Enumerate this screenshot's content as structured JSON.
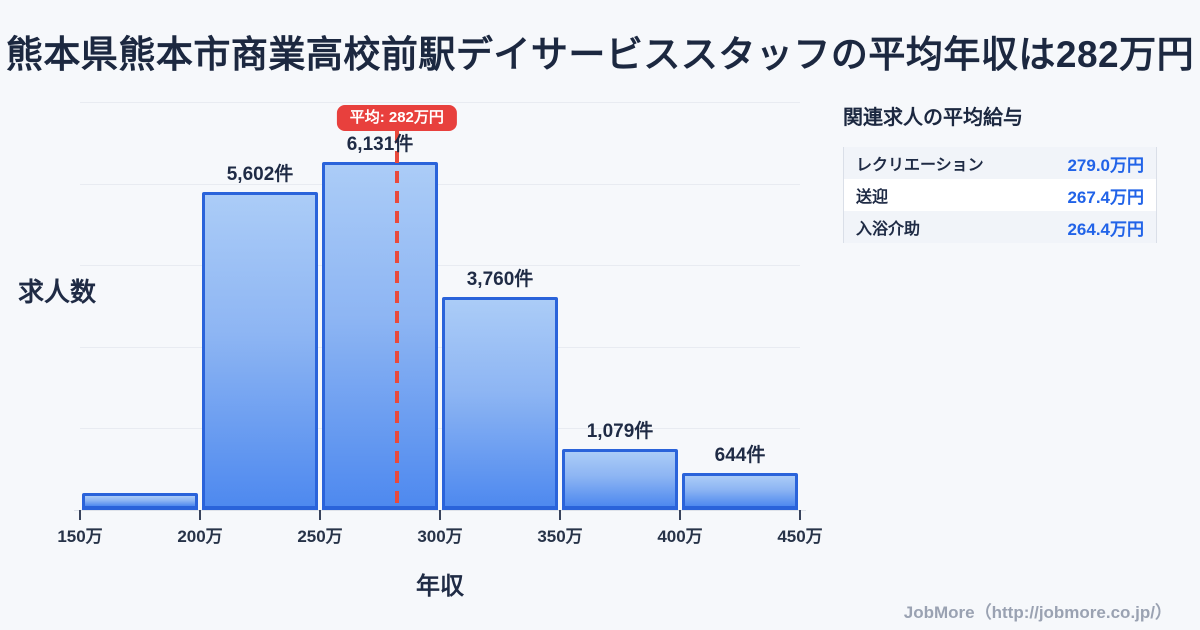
{
  "page": {
    "title": "熊本県熊本市商業高校前駅デイサービススタッフの平均年収は282万円",
    "footer": "JobMore（http://jobmore.co.jp/）"
  },
  "colors": {
    "background": "#f6f8fb",
    "title_text": "#1c2840",
    "bar_border": "#2a63da",
    "bar_fill_top": "#abccf7",
    "bar_fill_bottom": "#4e89ef",
    "grid_line": "#e8ebf1",
    "average_line": "#e84a3c",
    "average_badge_bg": "#e8403d",
    "average_badge_text": "#ffffff",
    "salary_value_text": "#2163e8",
    "footer_text": "#9aa2b2"
  },
  "chart_data": {
    "type": "bar",
    "subtype": "histogram",
    "title": "熊本県熊本市商業高校前駅デイサービススタッフの平均年収は282万円",
    "xlabel": "年収",
    "ylabel": "求人数",
    "x_axis_range_man_yen": [
      150,
      450
    ],
    "x_ticks": [
      "150万",
      "200万",
      "250万",
      "300万",
      "350万",
      "400万",
      "450万"
    ],
    "bin_edges_man_yen": [
      150,
      200,
      250,
      300,
      350,
      400,
      450
    ],
    "values": [
      300,
      5602,
      6131,
      3760,
      1079,
      644
    ],
    "value_labels": [
      "",
      "5,602件",
      "6,131件",
      "3,760件",
      "1,079件",
      "644件"
    ],
    "first_bin_unlabeled_estimate": 300,
    "ylim": [
      0,
      7200
    ],
    "grid": "horizontal",
    "legend": "none",
    "average": {
      "value_man_yen": 282,
      "label": "平均: 282万円"
    }
  },
  "side_panel": {
    "title": "関連求人の平均給与",
    "rows": [
      {
        "label": "レクリエーション",
        "value": "279.0万円"
      },
      {
        "label": "送迎",
        "value": "267.4万円"
      },
      {
        "label": "入浴介助",
        "value": "264.4万円"
      }
    ]
  }
}
